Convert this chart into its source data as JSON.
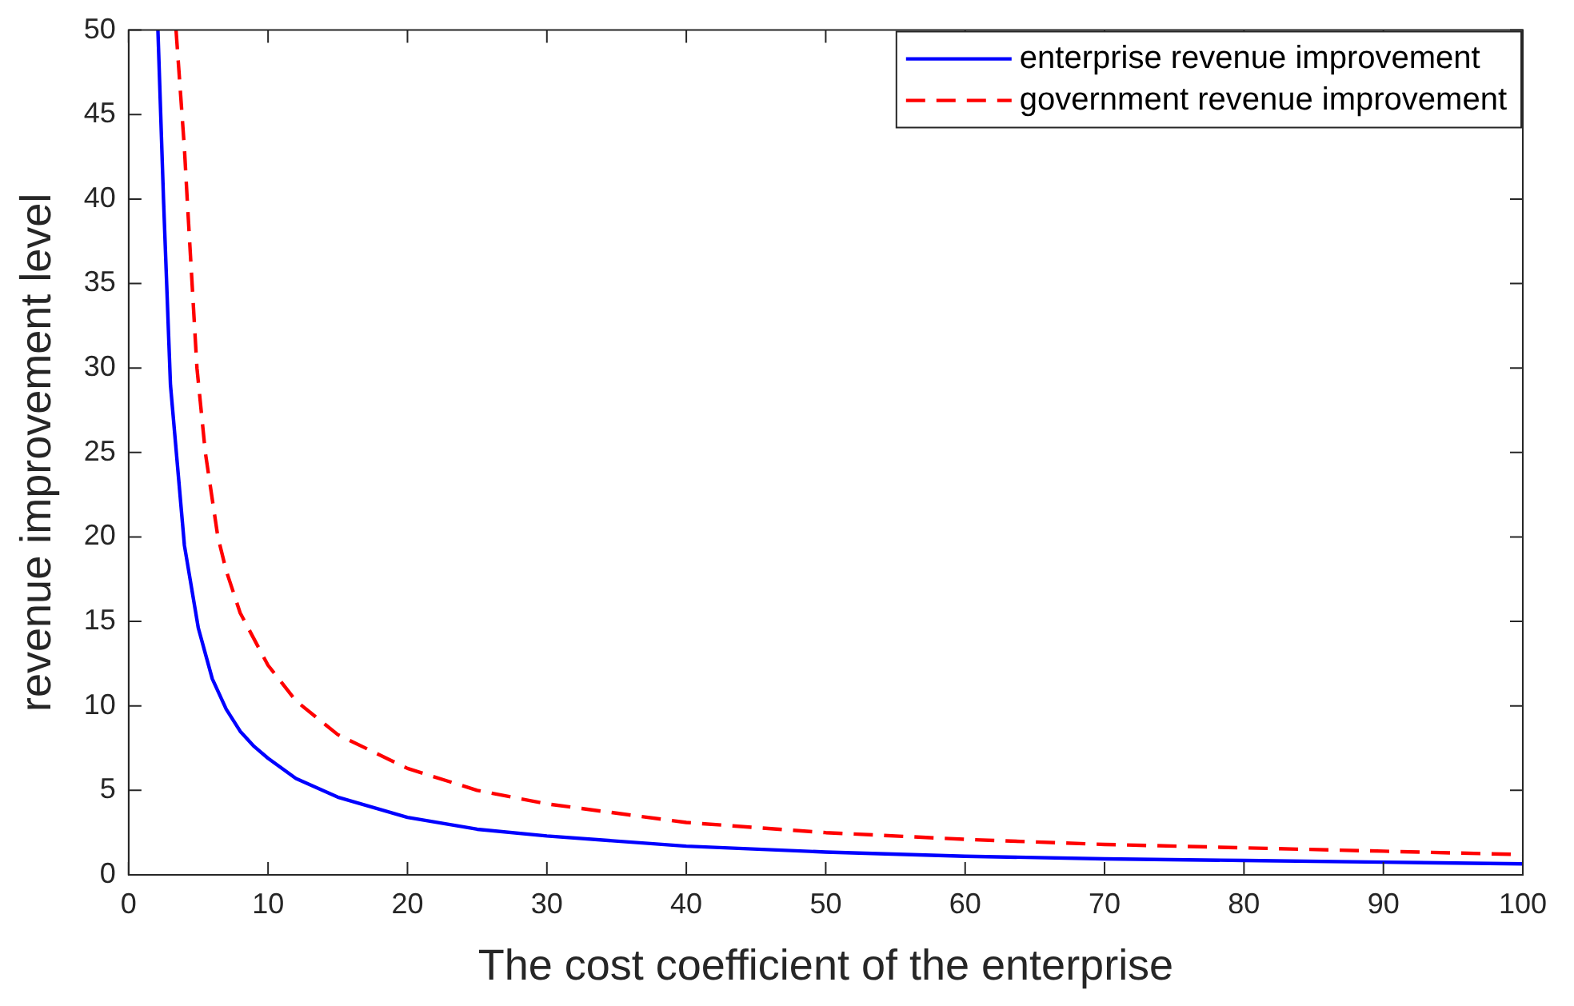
{
  "chart_data": {
    "type": "line",
    "xlabel": "The cost coefficient of the enterprise",
    "ylabel": "revenue improvement level",
    "xlim": [
      0,
      100
    ],
    "xticks": [
      0,
      10,
      20,
      30,
      40,
      50,
      60,
      70,
      80,
      90,
      100
    ],
    "ylim": [
      0,
      50
    ],
    "yticks": [
      0,
      5,
      10,
      15,
      20,
      25,
      30,
      35,
      40,
      45,
      50
    ],
    "grid": false,
    "legend": "top right",
    "marker": "none",
    "series": [
      {
        "name": "enterprise revenue improvement",
        "color": "#0000ff",
        "line_style": "solid",
        "x": [
          2.1,
          2.5,
          3,
          4,
          5,
          6,
          7,
          8,
          9,
          10,
          12,
          15,
          20,
          25,
          30,
          40,
          50,
          60,
          70,
          80,
          90,
          100
        ],
        "values": [
          50,
          40,
          29,
          19.5,
          14.6,
          11.6,
          9.8,
          8.5,
          7.6,
          6.9,
          5.7,
          4.6,
          3.4,
          2.7,
          2.3,
          1.7,
          1.35,
          1.1,
          0.95,
          0.85,
          0.75,
          0.65
        ]
      },
      {
        "name": "government revenue improvement",
        "color": "#ff0000",
        "line_style": "dashed",
        "x": [
          3.4,
          4,
          4.2,
          4.9,
          5.5,
          6.4,
          7,
          8,
          10,
          12,
          15,
          20,
          25,
          30,
          40,
          50,
          60,
          70,
          80,
          90,
          100
        ],
        "values": [
          50,
          43,
          40,
          30,
          25,
          20,
          18,
          15.5,
          12.4,
          10.3,
          8.3,
          6.3,
          5,
          4.2,
          3.1,
          2.5,
          2.1,
          1.8,
          1.6,
          1.4,
          1.2
        ]
      }
    ]
  }
}
